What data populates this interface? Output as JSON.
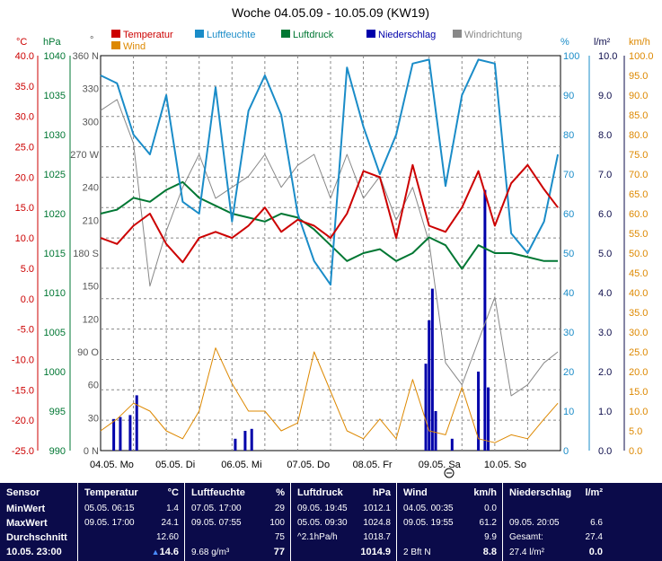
{
  "chart_data": {
    "type": "line",
    "title": "Woche 04.05.09 - 10.05.09 (KW19)",
    "legend": [
      {
        "name": "Temperatur",
        "color": "#cc0000"
      },
      {
        "name": "Luftfeuchte",
        "color": "#1a8cc8"
      },
      {
        "name": "Luftdruck",
        "color": "#007733"
      },
      {
        "name": "Niederschlag",
        "color": "#0000aa"
      },
      {
        "name": "Windrichtung",
        "color": "#888888"
      },
      {
        "name": "Wind",
        "color": "#dd8800"
      }
    ],
    "axes": {
      "temp": {
        "unit": "°C",
        "ticks": [
          "40.0",
          "35.0",
          "30.0",
          "25.0",
          "20.0",
          "15.0",
          "10.0",
          "5.0",
          "0.0",
          "-5.0",
          "-10.0",
          "-15.0",
          "-20.0",
          "-25.0"
        ],
        "color": "#cc0000"
      },
      "pressure": {
        "unit": "hPa",
        "ticks": [
          "1040",
          "1035",
          "1030",
          "1025",
          "1020",
          "1015",
          "1010",
          "1005",
          "1000",
          "995",
          "990"
        ],
        "color": "#007733"
      },
      "winddir": {
        "unit": "°",
        "ticks": [
          "360 N",
          "330",
          "300",
          "270 W",
          "240",
          "210",
          "180 S",
          "150",
          "120",
          "90 O",
          "60",
          "30",
          "0 N"
        ],
        "color": "#555555"
      },
      "humidity": {
        "unit": "%",
        "ticks": [
          "100",
          "90",
          "80",
          "70",
          "60",
          "50",
          "40",
          "30",
          "20",
          "10",
          "0"
        ],
        "color": "#1a8cc8"
      },
      "rain": {
        "unit": "l/m²",
        "ticks": [
          "10.0",
          "9.0",
          "8.0",
          "7.0",
          "6.0",
          "5.0",
          "4.0",
          "3.0",
          "2.0",
          "1.0",
          "0.0"
        ],
        "color": "#0b0b4a"
      },
      "wind": {
        "unit": "km/h",
        "ticks": [
          "100.0",
          "95.0",
          "90.0",
          "85.0",
          "80.0",
          "75.0",
          "70.0",
          "65.0",
          "60.0",
          "55.0",
          "50.0",
          "45.0",
          "40.0",
          "35.0",
          "30.0",
          "25.0",
          "20.0",
          "15.0",
          "10.0",
          "5.0",
          "0.0"
        ],
        "color": "#dd8800"
      }
    },
    "days": [
      "04.05.  Mo",
      "05.05.  Di",
      "06.05.  Mi",
      "07.05.  Do",
      "08.05.  Fr",
      "09.05.  Sa",
      "10.05.  So"
    ],
    "x_days": [
      0,
      0.25,
      0.5,
      0.75,
      1,
      1.25,
      1.5,
      1.75,
      2,
      2.25,
      2.5,
      2.75,
      3,
      3.25,
      3.5,
      3.75,
      4,
      4.25,
      4.5,
      4.75,
      5,
      5.25,
      5.5,
      5.75,
      6,
      6.25,
      6.5,
      6.75,
      6.96
    ],
    "temperature": [
      10,
      9,
      12,
      14,
      9,
      6,
      10,
      11,
      10,
      12,
      15,
      11,
      13,
      12,
      10,
      14,
      21,
      20,
      10,
      22,
      12,
      11,
      15,
      21,
      12,
      19,
      22,
      18,
      15
    ],
    "humidity": [
      95,
      93,
      80,
      75,
      90,
      63,
      60,
      92,
      58,
      86,
      95,
      85,
      60,
      48,
      42,
      97,
      82,
      70,
      80,
      98,
      99,
      67,
      90,
      99,
      98,
      55,
      50,
      58,
      75
    ],
    "pressure": [
      1020,
      1020.5,
      1022,
      1021.5,
      1023,
      1024,
      1022,
      1021,
      1020,
      1019.5,
      1019,
      1020,
      1019.5,
      1018,
      1016,
      1014,
      1015,
      1015.5,
      1014,
      1015,
      1017,
      1016,
      1013,
      1016,
      1015,
      1015,
      1014.5,
      1014,
      1014
    ],
    "wind": [
      5,
      8,
      12,
      10,
      5,
      3,
      10,
      26,
      17,
      10,
      10,
      5,
      7,
      25,
      15,
      5,
      3,
      8,
      3,
      18,
      5,
      4,
      16,
      3,
      2,
      4,
      3,
      8,
      12
    ],
    "winddir": [
      310,
      320,
      280,
      150,
      200,
      240,
      270,
      230,
      240,
      250,
      270,
      240,
      260,
      270,
      230,
      270,
      230,
      250,
      210,
      240,
      190,
      80,
      60,
      100,
      140,
      50,
      60,
      80,
      90
    ],
    "rain_bars": [
      [
        0.2,
        0.8
      ],
      [
        0.3,
        0.85
      ],
      [
        0.45,
        0.9
      ],
      [
        0.55,
        1.4
      ],
      [
        2.05,
        0.3
      ],
      [
        2.2,
        0.5
      ],
      [
        2.3,
        0.55
      ],
      [
        4.95,
        2.2
      ],
      [
        5.0,
        3.3
      ],
      [
        5.05,
        4.1
      ],
      [
        5.1,
        1.0
      ],
      [
        5.35,
        0.3
      ],
      [
        5.75,
        2.0
      ],
      [
        5.85,
        6.6
      ],
      [
        5.9,
        1.6
      ]
    ]
  },
  "stats": {
    "sensor": {
      "header": "Sensor",
      "min": "MinWert",
      "max": "MaxWert",
      "avg": "Durchschnitt",
      "now": "10.05.  23:00"
    },
    "temperature": {
      "header": "Temperatur",
      "unit": "°C",
      "min_time": "05.05.  06:15",
      "min": "1.4",
      "max_time": "09.05.  17:00",
      "max": "24.1",
      "avg": "12.60",
      "now": "14.6"
    },
    "humidity": {
      "header": "Luftfeuchte",
      "unit": "%",
      "min_time": "07.05.  17:00",
      "min": "29",
      "max_time": "09.05.  07:55",
      "max": "100",
      "avg": "75",
      "extra": "9.68 g/m³",
      "now": "77"
    },
    "pressure": {
      "header": "Luftdruck",
      "unit": "hPa",
      "min_time": "09.05.  19:45",
      "min": "1012.1",
      "max_time": "05.05.  09:30",
      "max": "1024.8",
      "trend": "^2.1hPa/h",
      "avg": "1018.7",
      "now": "1014.9"
    },
    "wind": {
      "header": "Wind",
      "unit": "km/h",
      "min_time": "04.05.  00:35",
      "min": "0.0",
      "max_time": "09.05.  19:55",
      "max": "61.2",
      "avg": "9.9",
      "extra": "2 Bft N",
      "now": "8.8"
    },
    "rain": {
      "header": "Niederschlag",
      "unit": "l/m²",
      "max_time": "09.05.  20:05",
      "max": "6.6",
      "total_label": "Gesamt:",
      "total": "27.4",
      "extra": "27.4 l/m²",
      "now": "0.0"
    }
  }
}
